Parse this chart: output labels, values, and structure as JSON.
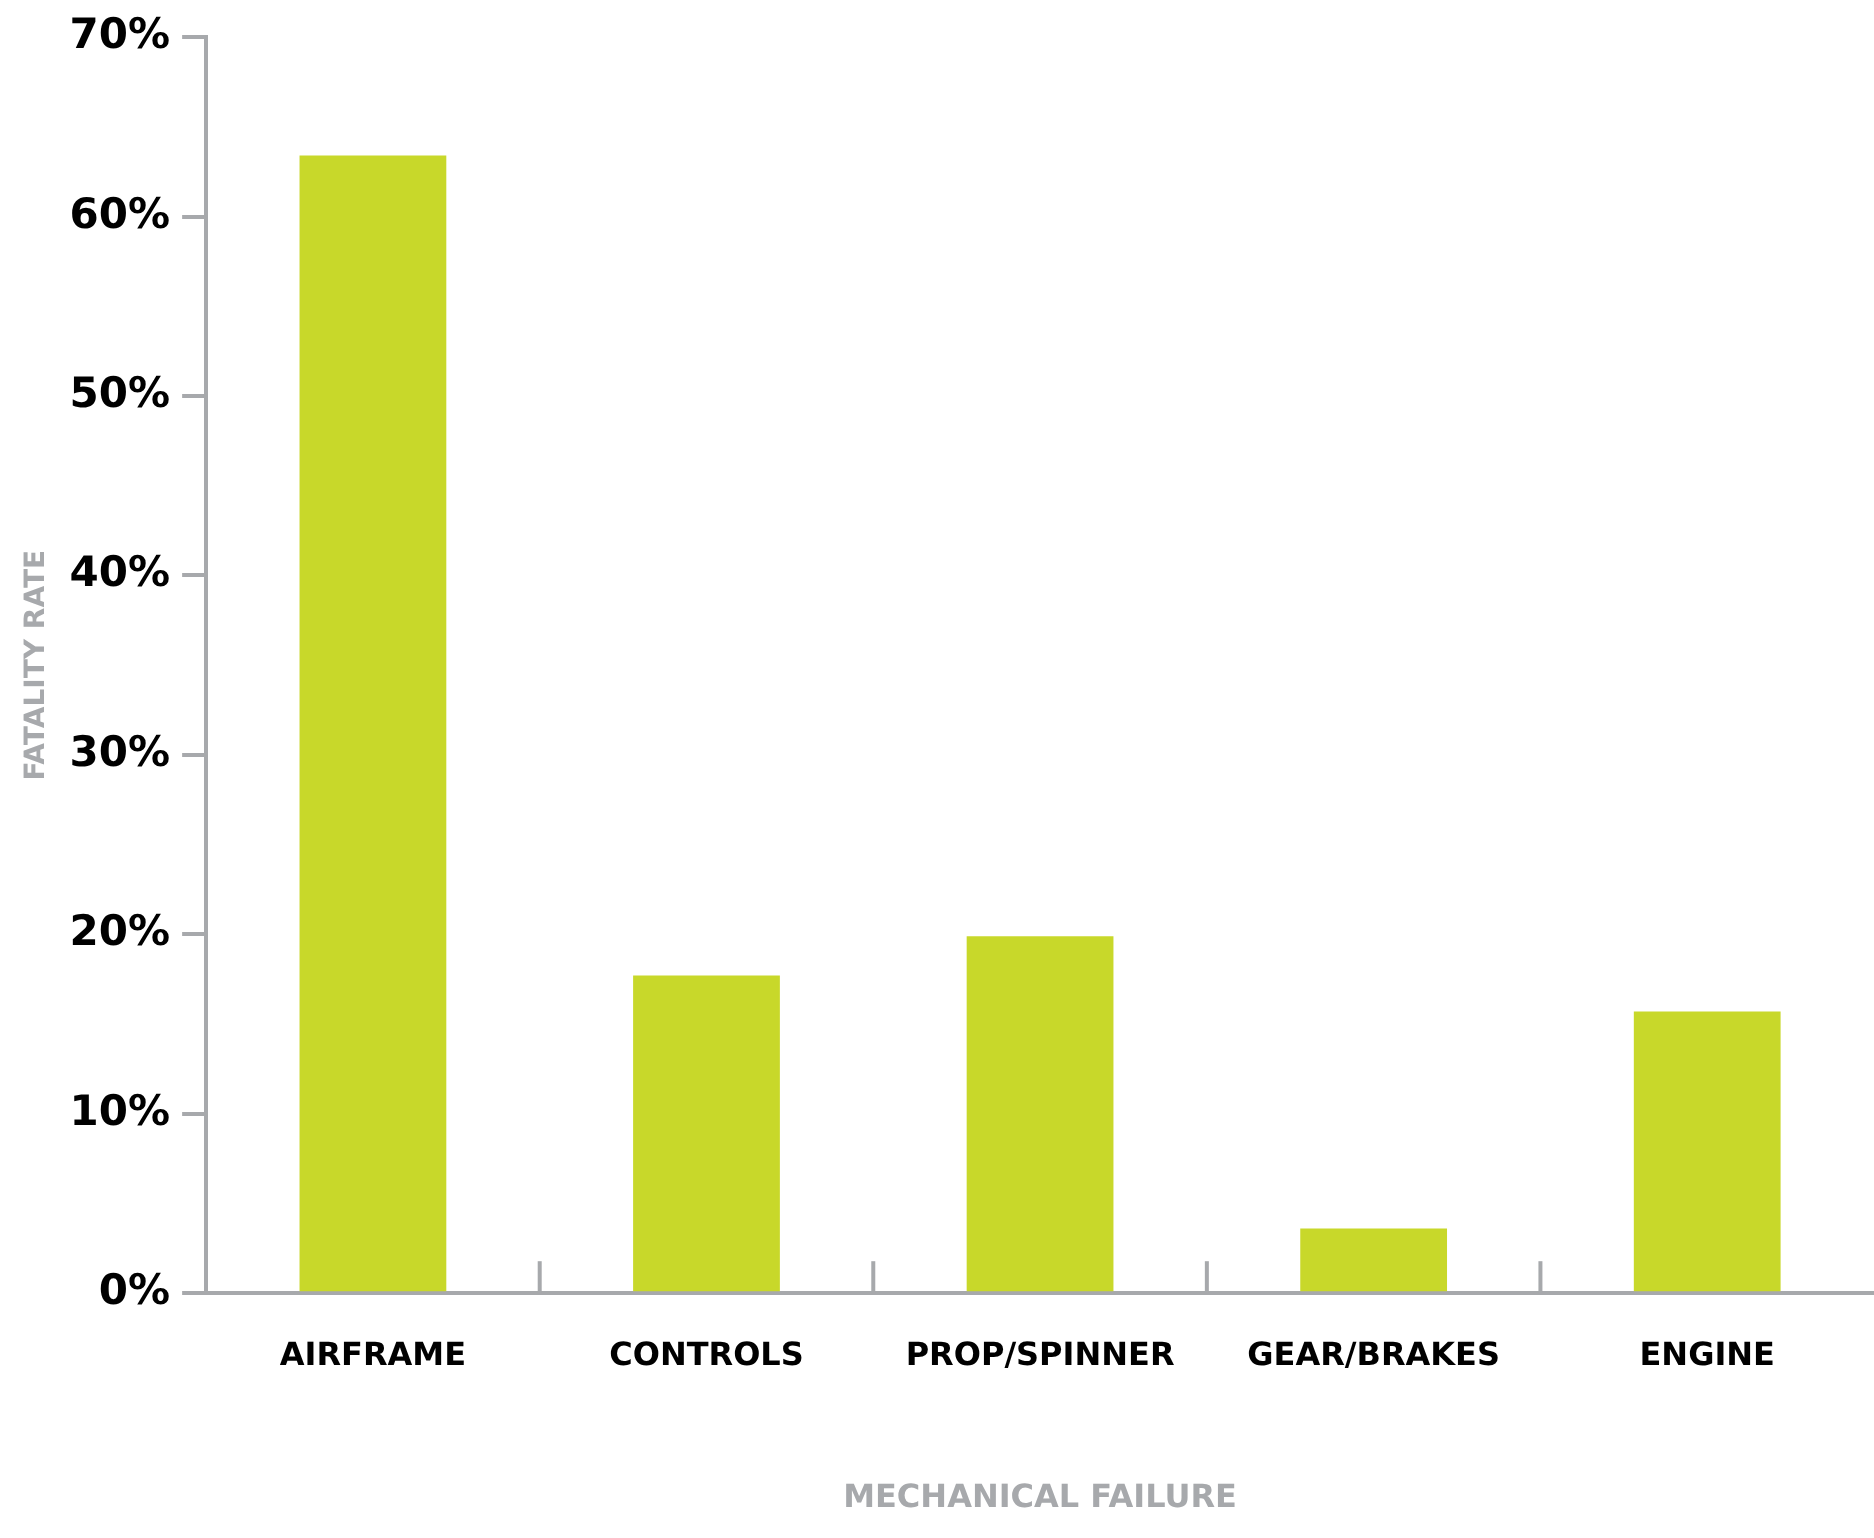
{
  "chart_data": {
    "type": "bar",
    "xlabel": "MECHANICAL FAILURE",
    "ylabel": "FATALITY RATE",
    "categories": [
      "AIRFRAME",
      "CONTROLS",
      "PROP/SPINNER",
      "GEAR/BRAKES",
      "ENGINE"
    ],
    "values": [
      63.4,
      17.7,
      19.9,
      3.6,
      15.7
    ],
    "color": "#c8d82a",
    "ylim": [
      0,
      70
    ],
    "yticks": [
      {
        "value": 0,
        "label": "0%"
      },
      {
        "value": 10,
        "label": "10%"
      },
      {
        "value": 20,
        "label": "20%"
      },
      {
        "value": 30,
        "label": "30%"
      },
      {
        "value": 40,
        "label": "40%"
      },
      {
        "value": 50,
        "label": "50%"
      },
      {
        "value": 60,
        "label": "60%"
      },
      {
        "value": 70,
        "label": "70%"
      }
    ],
    "grid": false,
    "legend": false
  }
}
